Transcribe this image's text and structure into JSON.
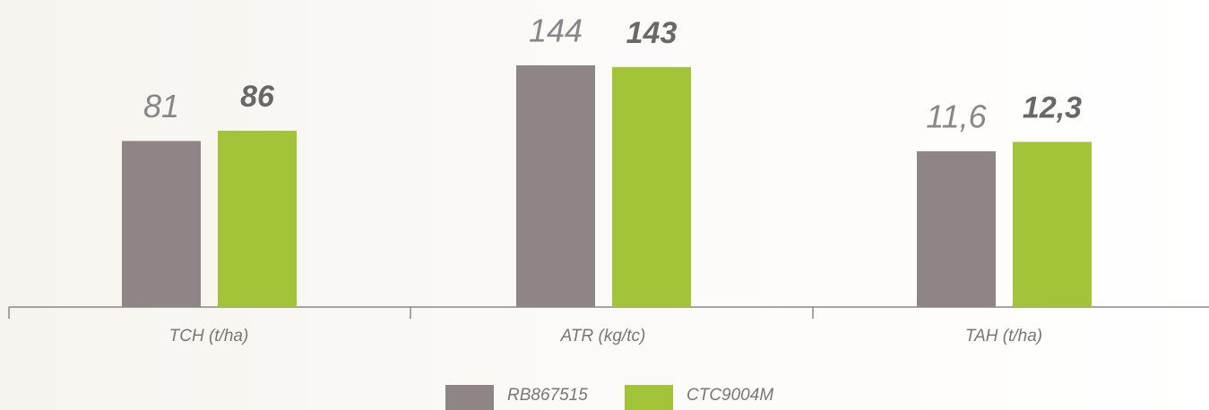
{
  "legend": [
    {
      "name": "RB867515",
      "color": "#8f8587"
    },
    {
      "name": "CTC9004M",
      "color": "#a2c438"
    }
  ],
  "chart_data": [
    {
      "type": "bar",
      "categories": [
        "TCH (t/ha)"
      ],
      "ylim": [
        0,
        131
      ],
      "series": [
        {
          "values": [
            81
          ]
        },
        {
          "values": [
            86
          ]
        }
      ]
    },
    {
      "type": "bar",
      "categories": [
        "ATR (kg/tc)"
      ],
      "ylim": [
        0,
        160
      ],
      "series": [
        {
          "values": [
            144
          ]
        },
        {
          "values": [
            143
          ]
        }
      ]
    },
    {
      "type": "bar",
      "categories": [
        "TAH (t/ha)"
      ],
      "ylim": [
        0,
        20
      ],
      "series": [
        {
          "values": [
            11.6
          ],
          "value_labels": [
            "11,6"
          ]
        },
        {
          "values": [
            12.3
          ],
          "value_labels": [
            "12,3"
          ]
        }
      ]
    }
  ]
}
